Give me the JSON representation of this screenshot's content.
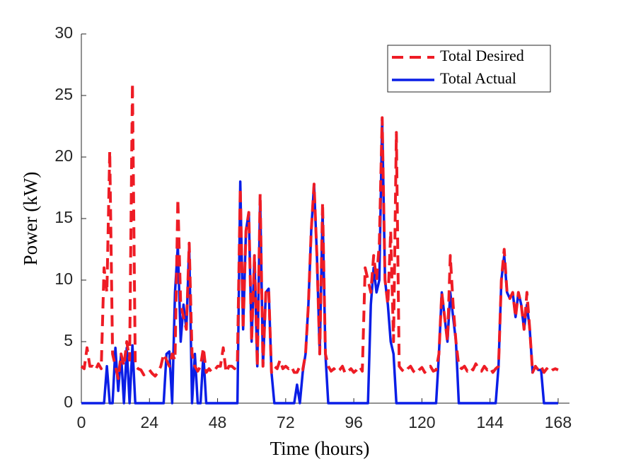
{
  "chart_data": {
    "type": "line",
    "xlabel": "Time (hours)",
    "ylabel": "Power (kW)",
    "xlim": [
      0,
      172
    ],
    "ylim": [
      0,
      30
    ],
    "xticks": [
      0,
      24,
      48,
      72,
      96,
      120,
      144,
      168
    ],
    "yticks": [
      0,
      5,
      10,
      15,
      20,
      25,
      30
    ],
    "legend": "northeast",
    "x": [
      0,
      1,
      2,
      3,
      4,
      5,
      6,
      7,
      8,
      9,
      10,
      11,
      12,
      13,
      14,
      15,
      16,
      17,
      18,
      19,
      20,
      21,
      22,
      23,
      24,
      25,
      26,
      27,
      28,
      29,
      30,
      31,
      32,
      33,
      34,
      35,
      36,
      37,
      38,
      39,
      40,
      41,
      42,
      43,
      44,
      45,
      46,
      47,
      48,
      49,
      50,
      51,
      52,
      53,
      54,
      55,
      56,
      57,
      58,
      59,
      60,
      61,
      62,
      63,
      64,
      65,
      66,
      67,
      68,
      69,
      70,
      71,
      72,
      73,
      74,
      75,
      76,
      77,
      78,
      79,
      80,
      81,
      82,
      83,
      84,
      85,
      86,
      87,
      88,
      89,
      90,
      91,
      92,
      93,
      94,
      95,
      96,
      97,
      98,
      99,
      100,
      101,
      102,
      103,
      104,
      105,
      106,
      107,
      108,
      109,
      110,
      111,
      112,
      113,
      114,
      115,
      116,
      117,
      118,
      119,
      120,
      121,
      122,
      123,
      124,
      125,
      126,
      127,
      128,
      129,
      130,
      131,
      132,
      133,
      134,
      135,
      136,
      137,
      138,
      139,
      140,
      141,
      142,
      143,
      144,
      145,
      146,
      147,
      148,
      149,
      150,
      151,
      152,
      153,
      154,
      155,
      156,
      157,
      158,
      159,
      160,
      161,
      162,
      163,
      164,
      165,
      166,
      167,
      168
    ],
    "series": [
      {
        "name": "Total Actual",
        "color": "#0a1ee6",
        "style": "solid",
        "values": [
          0,
          0,
          0,
          0,
          0,
          0,
          0,
          0,
          0,
          3,
          0,
          0,
          4.5,
          1,
          4,
          0,
          4.5,
          0,
          4.7,
          0,
          0,
          0,
          0,
          0,
          0,
          0,
          0,
          0,
          0,
          0,
          4,
          4.2,
          0,
          9,
          12.8,
          5,
          8,
          6,
          12.8,
          0,
          4,
          0,
          0,
          4,
          0,
          0,
          0,
          0,
          0,
          0,
          0,
          0,
          0,
          0,
          0,
          0,
          18,
          6,
          14,
          15.5,
          5,
          12,
          3,
          16.8,
          3,
          9,
          9.3,
          2.5,
          0,
          0,
          0,
          0,
          0,
          0,
          0,
          0,
          1.5,
          0,
          2.5,
          4,
          8,
          14,
          17.8,
          12,
          4,
          15.7,
          4,
          0,
          0,
          0,
          0,
          0,
          0,
          0,
          0,
          0,
          0,
          0,
          0,
          0,
          0,
          0,
          8,
          11,
          9,
          10,
          23.2,
          10,
          8,
          5,
          4,
          0,
          0,
          0,
          0,
          0,
          0,
          0,
          0,
          0,
          0,
          0,
          0,
          0,
          0,
          0,
          4,
          9,
          7,
          5,
          9,
          7,
          5,
          0,
          0,
          0,
          0,
          0,
          0,
          0,
          0,
          0,
          0,
          0,
          0,
          0,
          0,
          3,
          10,
          12,
          9,
          8.5,
          9,
          7,
          9,
          8,
          6,
          8,
          6,
          2.5,
          3,
          2.7,
          2.7,
          0,
          0,
          0,
          0,
          0,
          0
        ]
      },
      {
        "name": "Total Desired",
        "color": "#ee1c25",
        "style": "dashed",
        "values": [
          3,
          2.8,
          4.5,
          3,
          3,
          2.7,
          3.2,
          2.8,
          11,
          9,
          20.5,
          4,
          3,
          2,
          4,
          3,
          5,
          3.5,
          26,
          3,
          2.8,
          2.7,
          2.3,
          2.5,
          2.7,
          2.4,
          2.2,
          2.5,
          3,
          4,
          3.5,
          3,
          4,
          3.5,
          16.6,
          8,
          7,
          6,
          13,
          4,
          3,
          2.6,
          3,
          4.5,
          2.5,
          2.8,
          2.5,
          2.7,
          3,
          3,
          4.5,
          2.5,
          3,
          3,
          2.8,
          3.5,
          17.5,
          6,
          14,
          15.5,
          5,
          12,
          3,
          17,
          3,
          9,
          9.3,
          2.5,
          3,
          2.8,
          3.5,
          2.8,
          3,
          2.8,
          3,
          2.5,
          2.5,
          3,
          2.7,
          4,
          8,
          14,
          17.8,
          12,
          4,
          16.3,
          4,
          3,
          2.6,
          2.8,
          2.5,
          2.7,
          3,
          2.4,
          2.6,
          2.8,
          2.5,
          2.7,
          3,
          2.6,
          11,
          10,
          9,
          12,
          10,
          13,
          23.2,
          10,
          8,
          14,
          5,
          22,
          3,
          2.7,
          2.5,
          2.8,
          3,
          2.6,
          2.4,
          2.7,
          2.9,
          2.5,
          2.8,
          3,
          2.6,
          2.7,
          4,
          9,
          7,
          5,
          12,
          8,
          5,
          3,
          2.8,
          3,
          2.6,
          2.9,
          2.7,
          3.2,
          2.8,
          2.6,
          3,
          2.7,
          2.9,
          2.5,
          2.8,
          3,
          10,
          12.5,
          9,
          8.5,
          9,
          7,
          9,
          8,
          6,
          9,
          6,
          2.5,
          3,
          2.7,
          3,
          2.5,
          2.8,
          2.5,
          2.7,
          2.8,
          2.7
        ]
      }
    ]
  }
}
